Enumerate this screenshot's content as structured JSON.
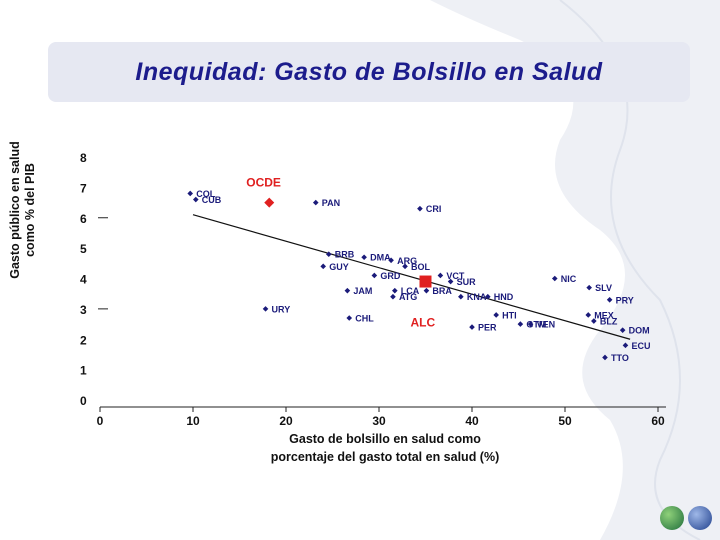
{
  "title": "Inequidad: Gasto de Bolsillo en Salud",
  "chart_data": {
    "type": "scatter",
    "title": "Inequidad: Gasto de Bolsillo en Salud",
    "ylabel_lines": [
      "Gasto público en salud",
      "como % del PIB"
    ],
    "xlabel_lines": [
      "Gasto de bolsillo en salud como",
      "porcentaje del gasto total en salud (%)"
    ],
    "xlim": [
      0,
      60
    ],
    "ylim": [
      0,
      8
    ],
    "xticks": [
      "0",
      "10",
      "20",
      "30",
      "40",
      "50",
      "60"
    ],
    "yticks": [
      "0",
      "1",
      "2",
      "3",
      "4",
      "5",
      "6",
      "7",
      "8"
    ],
    "grid": false,
    "points": [
      {
        "label": "COL",
        "x": 9.7,
        "y": 6.8
      },
      {
        "label": "CUB",
        "x": 10.3,
        "y": 6.6
      },
      {
        "label": "PAN",
        "x": 23.2,
        "y": 6.5
      },
      {
        "label": "CRI",
        "x": 34.4,
        "y": 6.3
      },
      {
        "label": "BRB",
        "x": 24.6,
        "y": 4.8
      },
      {
        "label": "GUY",
        "x": 24.0,
        "y": 4.4
      },
      {
        "label": "DMA",
        "x": 28.4,
        "y": 4.7
      },
      {
        "label": "ARG",
        "x": 31.3,
        "y": 4.6
      },
      {
        "label": "BOL",
        "x": 32.8,
        "y": 4.4
      },
      {
        "label": "VCT",
        "x": 36.6,
        "y": 4.1
      },
      {
        "label": "GRD",
        "x": 29.5,
        "y": 4.1
      },
      {
        "label": "SUR",
        "x": 37.7,
        "y": 3.9
      },
      {
        "label": "JAM",
        "x": 26.6,
        "y": 3.6
      },
      {
        "label": "LCA",
        "x": 31.7,
        "y": 3.6
      },
      {
        "label": "BRA",
        "x": 35.1,
        "y": 3.6
      },
      {
        "label": "ATG",
        "x": 31.5,
        "y": 3.4
      },
      {
        "label": "KNA",
        "x": 38.8,
        "y": 3.4
      },
      {
        "label": "HND",
        "x": 41.7,
        "y": 3.4
      },
      {
        "label": "NIC",
        "x": 48.9,
        "y": 4.0
      },
      {
        "label": "SLV",
        "x": 52.6,
        "y": 3.7
      },
      {
        "label": "PRY",
        "x": 54.8,
        "y": 3.3
      },
      {
        "label": "URY",
        "x": 17.8,
        "y": 3.0
      },
      {
        "label": "CHL",
        "x": 26.8,
        "y": 2.7
      },
      {
        "label": "HTI",
        "x": 42.6,
        "y": 2.8
      },
      {
        "label": "PER",
        "x": 40.0,
        "y": 2.4
      },
      {
        "label": "GTM",
        "x": 45.2,
        "y": 2.5
      },
      {
        "label": "VEN",
        "x": 46.3,
        "y": 2.5
      },
      {
        "label": "MEX",
        "x": 52.5,
        "y": 2.8
      },
      {
        "label": "BLZ",
        "x": 53.1,
        "y": 2.6
      },
      {
        "label": "DOM",
        "x": 56.2,
        "y": 2.3
      },
      {
        "label": "ECU",
        "x": 56.5,
        "y": 1.8
      },
      {
        "label": "TTO",
        "x": 54.3,
        "y": 1.4
      }
    ],
    "highlights": [
      {
        "label": "OCDE",
        "x": 18.2,
        "y": 6.5
      },
      {
        "label": "ALC",
        "x": 35.0,
        "y": 3.9
      }
    ],
    "trendline": {
      "x": [
        10,
        57
      ],
      "y": [
        6.1,
        2.0
      ]
    },
    "reference_ticks_y": [
      6,
      3
    ],
    "colors": {
      "points": "#1b1b7a",
      "highlight": "#e02020",
      "text": "#111111",
      "title": "#1c1c8c"
    }
  }
}
